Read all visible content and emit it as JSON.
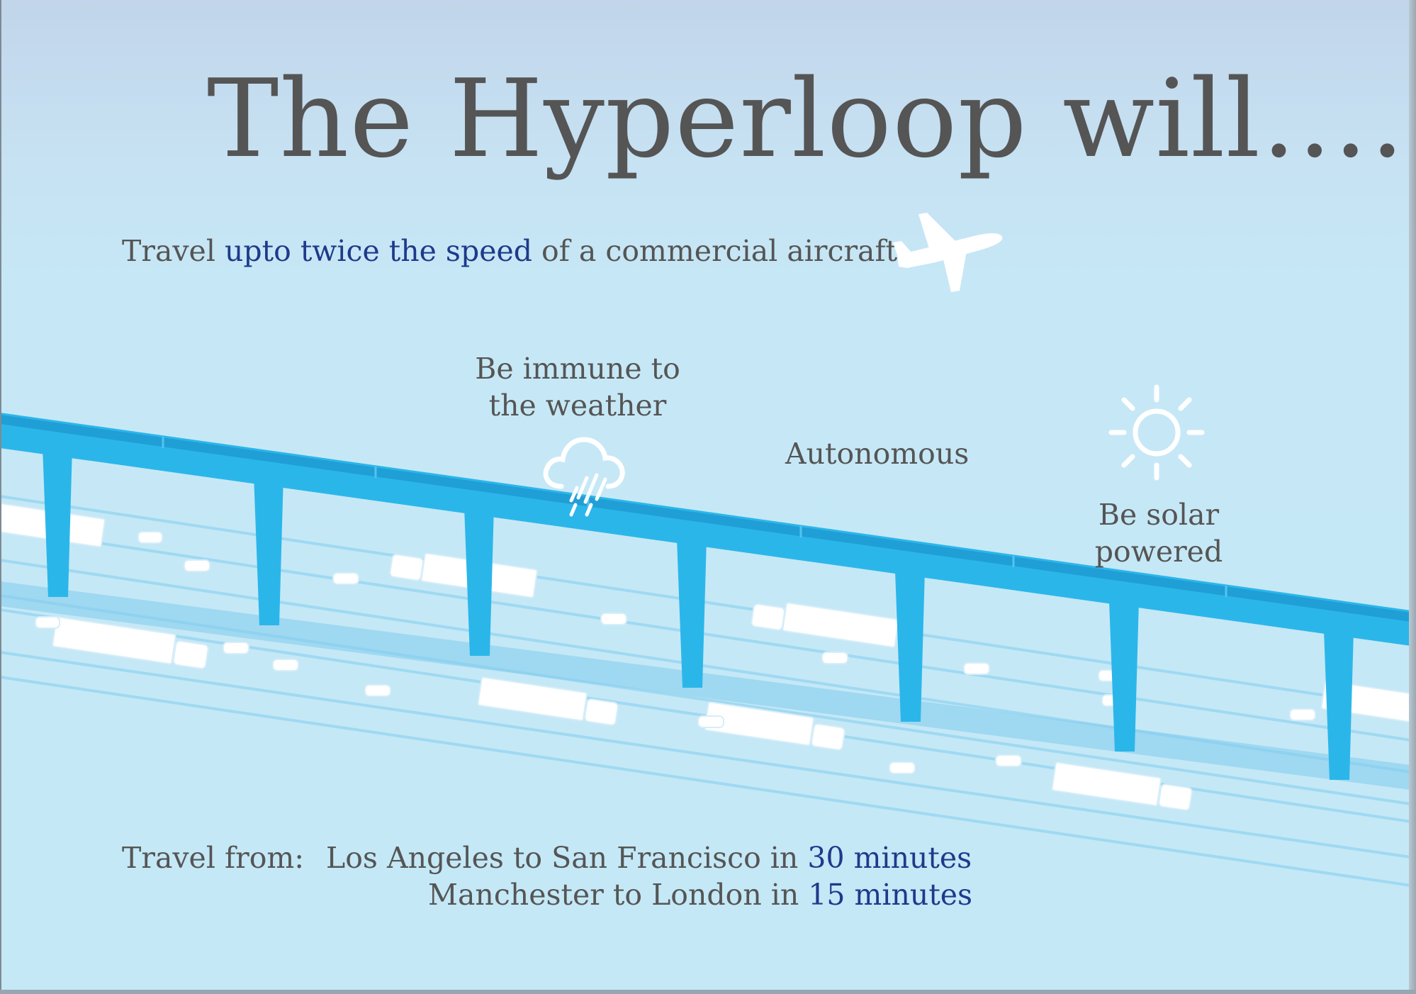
{
  "title": "The Hyperloop will……",
  "speed_line": {
    "before": "Travel ",
    "highlight": "upto twice the speed",
    "after": " of a commercial aircraft"
  },
  "weather": {
    "line1": "Be immune to",
    "line2": "the weather"
  },
  "autonomous": "Autonomous",
  "solar": {
    "line1": "Be solar",
    "line2": "powered"
  },
  "travel": {
    "label": "Travel from:",
    "route1_text": "Los Angeles to San Francisco in ",
    "route1_time": "30 minutes",
    "route2_text": "Manchester to London in ",
    "route2_time": "15 minutes"
  },
  "icons": {
    "plane": "airplane-icon",
    "weather": "rain-cloud-icon",
    "sun": "sun-icon"
  },
  "colors": {
    "text": "#555555",
    "highlight": "#1e3a8a",
    "tube": "#2bb6ea",
    "background_top": "#c2d5ea",
    "background": "#c6e8f6",
    "vehicle": "#ffffff"
  }
}
